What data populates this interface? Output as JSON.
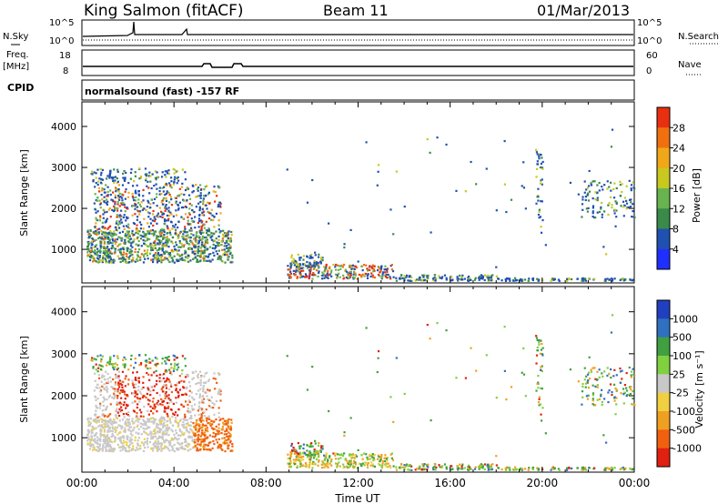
{
  "header": {
    "station": "King Salmon (fitACF)",
    "beam": "Beam 11",
    "date": "01/Mar/2013"
  },
  "strip_labels": {
    "nsky": "N.Sky",
    "nsky_top": "10^5",
    "nsky_bottom": "10^0",
    "nsearch": "N.Search",
    "nsearch_top": "10^5",
    "nsearch_bottom": "10^0",
    "freq": "Freq.",
    "freq_unit": "[MHz]",
    "freq_top": "18",
    "freq_bottom": "8",
    "nave": "Nave",
    "nave_top": "60",
    "nave_bottom": "0",
    "cpid": "CPID",
    "cpid_text": "normalsound (fast) -157 RF"
  },
  "colors": {
    "power_scale": [
      "#1f2fff",
      "#2050b0",
      "#3a8a4a",
      "#67b450",
      "#c8c820",
      "#f0a818",
      "#f07010",
      "#e83010"
    ],
    "velocity_scale": [
      "#2040c0",
      "#3070c0",
      "#40a040",
      "#80d040",
      "#c8c8c8",
      "#f0d040",
      "#f0a020",
      "#f06010",
      "#e02010"
    ]
  },
  "chart_data": [
    {
      "type": "heatmap",
      "name": "power",
      "ylabel": "Slant Range [km]",
      "y_ticks": [
        "1000",
        "2000",
        "3000",
        "4000"
      ],
      "colorbar_label": "Power [dB]",
      "colorbar_ticks": [
        "4",
        "8",
        "12",
        "16",
        "20",
        "24",
        "28"
      ],
      "x_ticks": [
        "00:00",
        "04:00",
        "08:00",
        "12:00",
        "16:00",
        "20:00",
        "00:00"
      ]
    },
    {
      "type": "heatmap",
      "name": "velocity",
      "ylabel": "Slant Range [km]",
      "y_ticks": [
        "1000",
        "2000",
        "3000",
        "4000"
      ],
      "colorbar_label": "Velocity [m s⁻¹]",
      "colorbar_ticks": [
        "1000",
        "500",
        "100",
        "25",
        "-25",
        "-100",
        "-500",
        "-1000"
      ],
      "x_ticks": [
        "00:00",
        "04:00",
        "08:00",
        "12:00",
        "16:00",
        "20:00",
        "00:00"
      ],
      "xlabel": "Time UT"
    }
  ]
}
